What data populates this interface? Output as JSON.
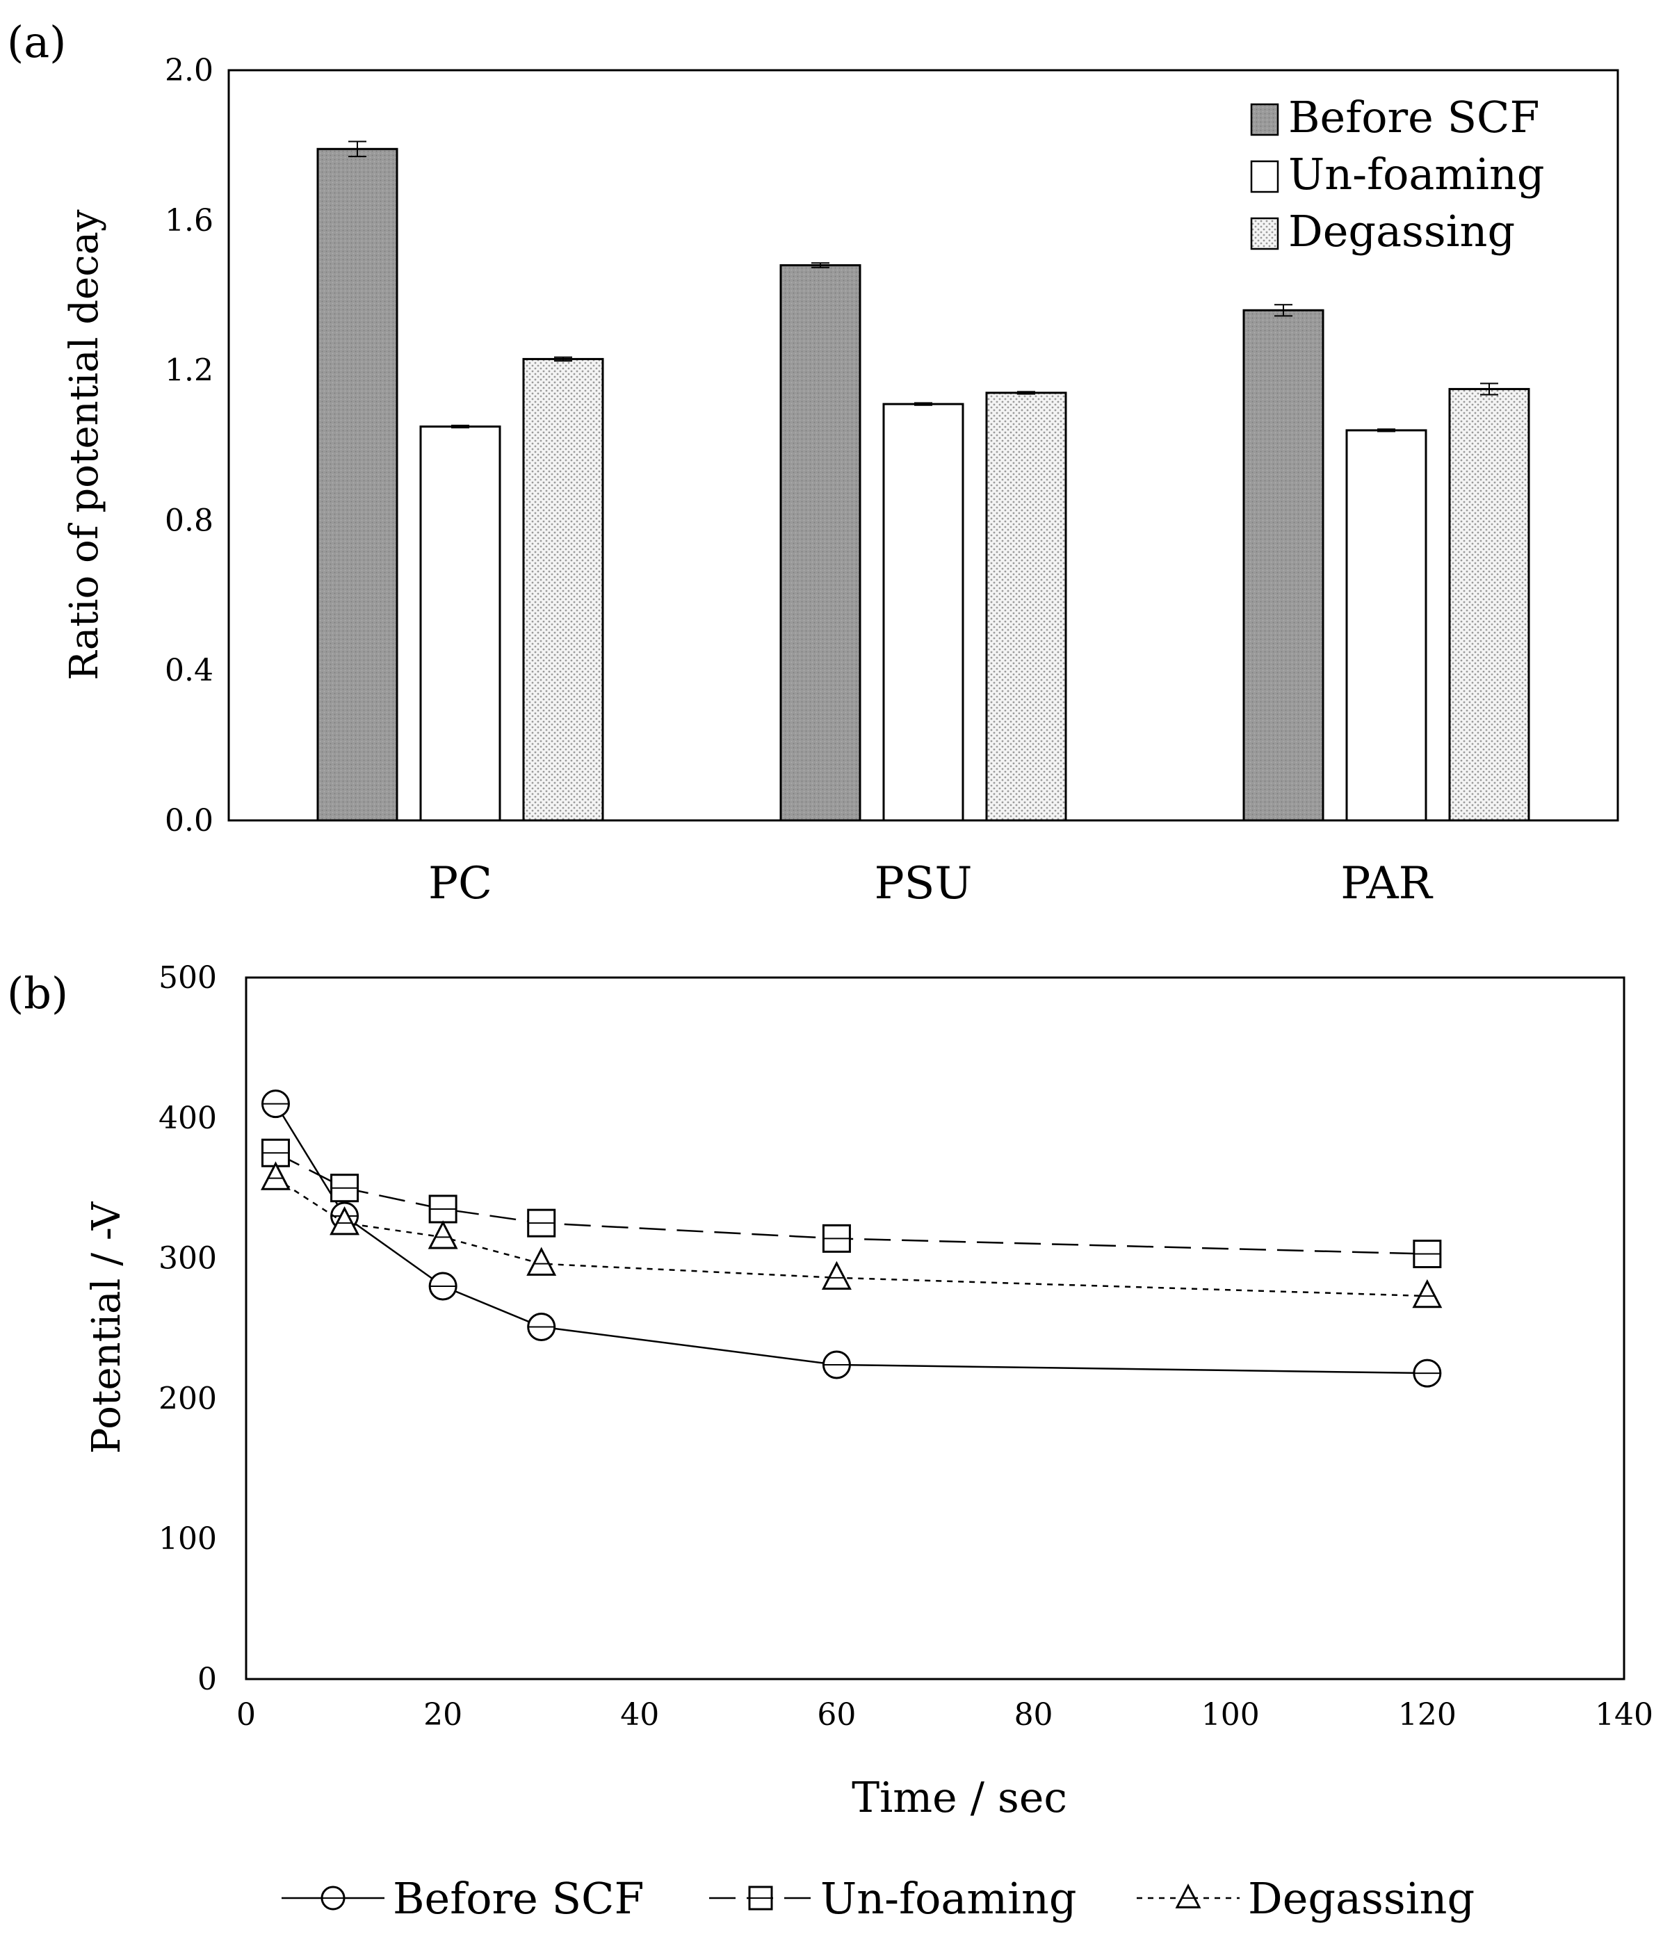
{
  "chart_data": [
    {
      "panel": "(a)",
      "type": "bar",
      "ylabel": "Ratio of potential decay",
      "ylim": [
        0,
        2.0
      ],
      "yticks": [
        "0.0",
        "0.4",
        "0.8",
        "1.2",
        "1.6",
        "2.0"
      ],
      "categories": [
        "PC",
        "PSU",
        "PAR"
      ],
      "legend_position": "top-right",
      "series": [
        {
          "name": "Before SCF",
          "fill": "#999999",
          "pattern": "solid-dotted",
          "values": [
            1.79,
            1.48,
            1.36
          ],
          "errors": [
            0.02,
            0.006,
            0.015
          ]
        },
        {
          "name": "Un-foaming",
          "fill": "#ffffff",
          "pattern": "none",
          "values": [
            1.05,
            1.11,
            1.04
          ],
          "errors": [
            0.003,
            0.003,
            0.003
          ]
        },
        {
          "name": "Degassing",
          "fill": "#dddddd",
          "pattern": "light-dotted",
          "values": [
            1.23,
            1.14,
            1.15
          ],
          "errors": [
            0.005,
            0.003,
            0.015
          ]
        }
      ]
    },
    {
      "panel": "(b)",
      "type": "line",
      "xlabel": "Time / sec",
      "ylabel": "Potential / -V",
      "xlim": [
        0,
        140
      ],
      "ylim": [
        0,
        500
      ],
      "xticks": [
        "0",
        "20",
        "40",
        "60",
        "80",
        "100",
        "120",
        "140"
      ],
      "yticks": [
        "0",
        "100",
        "200",
        "300",
        "400",
        "500"
      ],
      "legend_position": "bottom",
      "series": [
        {
          "name": "Before SCF",
          "marker": "circle",
          "line": "solid",
          "x": [
            3,
            10,
            20,
            30,
            60,
            120
          ],
          "y": [
            410,
            330,
            280,
            251,
            224,
            218
          ]
        },
        {
          "name": "Un-foaming",
          "marker": "square",
          "line": "dashed",
          "x": [
            3,
            10,
            20,
            30,
            60,
            120
          ],
          "y": [
            375,
            350,
            335,
            325,
            314,
            303
          ]
        },
        {
          "name": "Degassing",
          "marker": "triangle",
          "line": "dotted",
          "x": [
            3,
            10,
            20,
            30,
            60,
            120
          ],
          "y": [
            357,
            325,
            315,
            296,
            286,
            273
          ]
        }
      ]
    }
  ]
}
